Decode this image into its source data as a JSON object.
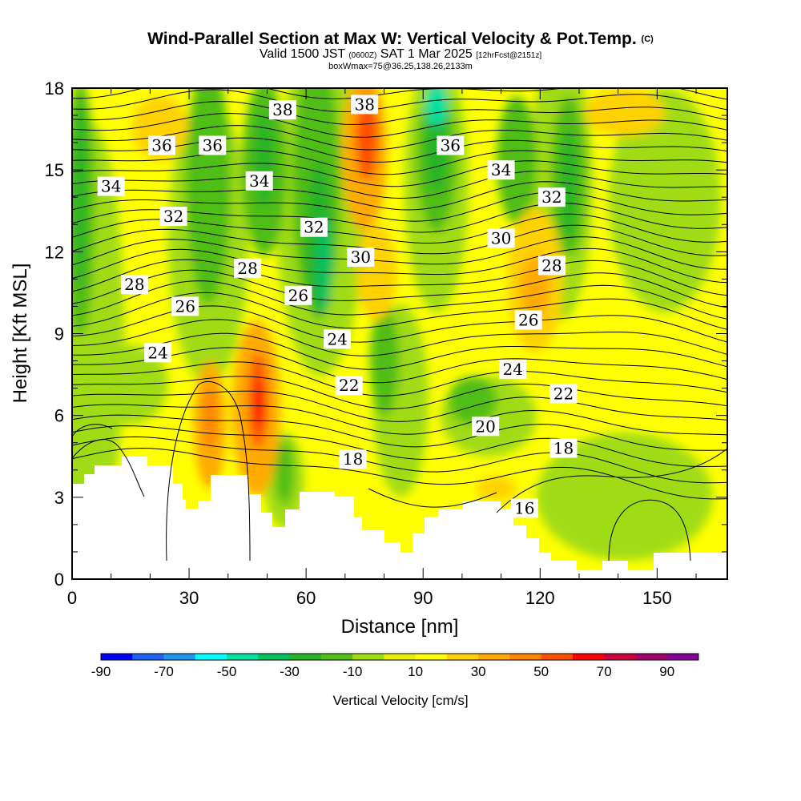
{
  "header": {
    "title_main": "Wind-Parallel Section at Max W: Vertical Velocity & Pot.Temp.",
    "title_copyright": "(C)",
    "valid_prefix": "Valid 1500 JST",
    "valid_z": "(0600Z)",
    "valid_date": "SAT 1 Mar 2025",
    "valid_fcst": "[12hrFcst@2151z]",
    "box_line": "boxWmax=75@36.25,138.26,2133m"
  },
  "chart_data": {
    "type": "heatmap",
    "xlabel": "Distance [nm]",
    "ylabel": "Height [Kft MSL]",
    "xlim": [
      0,
      168
    ],
    "ylim": [
      0,
      18
    ],
    "x_ticks": [
      "0",
      "30",
      "60",
      "90",
      "120",
      "150"
    ],
    "y_ticks": [
      "0",
      "3",
      "6",
      "9",
      "12",
      "15",
      "18"
    ],
    "colorbar": {
      "label": "Vertical Velocity [cm/s]",
      "tick_labels": [
        "-90",
        "-70",
        "-50",
        "-30",
        "-10",
        "10",
        "30",
        "50",
        "70",
        "90"
      ],
      "levels": [
        -90,
        -80,
        -70,
        -60,
        -50,
        -40,
        -30,
        -20,
        -10,
        0,
        10,
        20,
        30,
        40,
        50,
        60,
        70,
        80,
        90,
        100
      ],
      "colors": [
        "#0000ff",
        "#1e64f0",
        "#1e96f0",
        "#00ffff",
        "#00e0a0",
        "#00c060",
        "#28b428",
        "#50be14",
        "#a0dc14",
        "#e6f000",
        "#ffff00",
        "#ffd200",
        "#ffaa00",
        "#ff8200",
        "#ff5000",
        "#ff0000",
        "#c8003c",
        "#a0006e",
        "#820096"
      ]
    },
    "potential_temperature_labels": [
      {
        "label": "38",
        "x": 54,
        "y": 17.2
      },
      {
        "label": "38",
        "x": 75,
        "y": 17.4
      },
      {
        "label": "36",
        "x": 23,
        "y": 15.9
      },
      {
        "label": "36",
        "x": 36,
        "y": 15.9
      },
      {
        "label": "36",
        "x": 97,
        "y": 15.9
      },
      {
        "label": "34",
        "x": 10,
        "y": 14.4
      },
      {
        "label": "34",
        "x": 48,
        "y": 14.6
      },
      {
        "label": "34",
        "x": 110,
        "y": 15.0
      },
      {
        "label": "32",
        "x": 26,
        "y": 13.3
      },
      {
        "label": "32",
        "x": 62,
        "y": 12.9
      },
      {
        "label": "32",
        "x": 123,
        "y": 14.0
      },
      {
        "label": "30",
        "x": 74,
        "y": 11.8
      },
      {
        "label": "30",
        "x": 110,
        "y": 12.5
      },
      {
        "label": "28",
        "x": 16,
        "y": 10.8
      },
      {
        "label": "28",
        "x": 45,
        "y": 11.4
      },
      {
        "label": "28",
        "x": 123,
        "y": 11.5
      },
      {
        "label": "26",
        "x": 29,
        "y": 10.0
      },
      {
        "label": "26",
        "x": 58,
        "y": 10.4
      },
      {
        "label": "26",
        "x": 117,
        "y": 9.5
      },
      {
        "label": "24",
        "x": 22,
        "y": 8.3
      },
      {
        "label": "24",
        "x": 68,
        "y": 8.8
      },
      {
        "label": "24",
        "x": 113,
        "y": 7.7
      },
      {
        "label": "22",
        "x": 71,
        "y": 7.1
      },
      {
        "label": "22",
        "x": 126,
        "y": 6.8
      },
      {
        "label": "20",
        "x": 106,
        "y": 5.6
      },
      {
        "label": "18",
        "x": 72,
        "y": 4.4
      },
      {
        "label": "18",
        "x": 126,
        "y": 4.8
      },
      {
        "label": "16",
        "x": 116,
        "y": 2.6
      }
    ]
  }
}
